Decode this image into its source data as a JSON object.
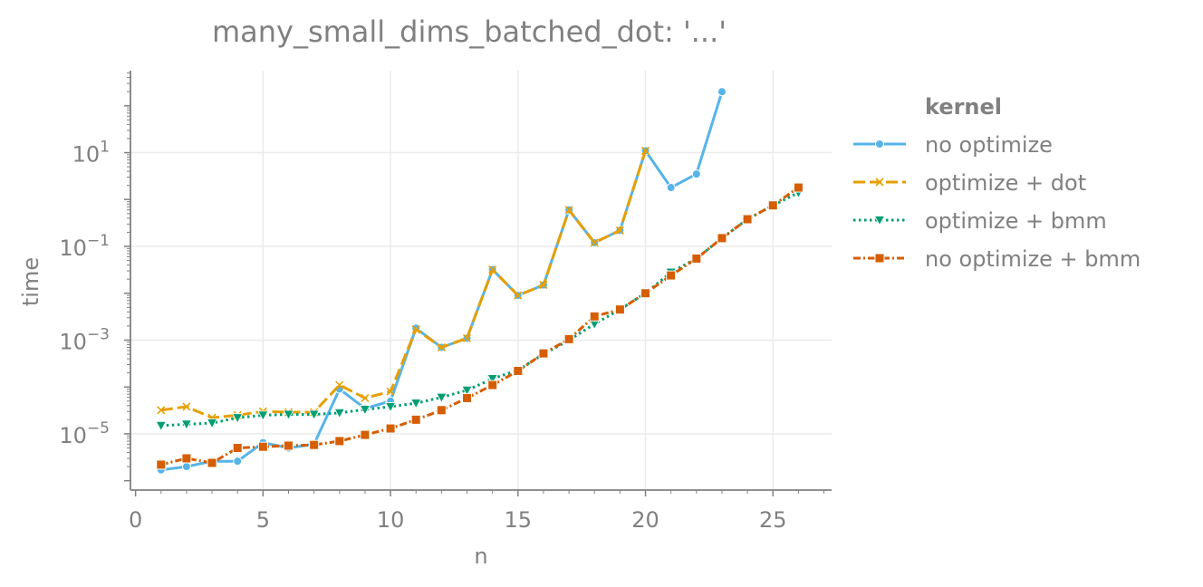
{
  "chart_data": {
    "type": "line",
    "title": "many_small_dims_batched_dot: '...'",
    "xlabel": "n",
    "ylabel": "time",
    "y_scale": "log",
    "grid": true,
    "xlim": [
      -0.2,
      27.3
    ],
    "ylim_exp": [
      -6.2,
      2.75
    ],
    "x_ticks": [
      0,
      5,
      10,
      15,
      20,
      25
    ],
    "y_ticks": [
      {
        "base": "10",
        "exp": "1",
        "value": 1
      },
      {
        "base": "10",
        "exp": "−1",
        "value": -1
      },
      {
        "base": "10",
        "exp": "−3",
        "value": -3
      },
      {
        "base": "10",
        "exp": "−5",
        "value": -5
      }
    ],
    "legend": {
      "title": "kernel",
      "position": "right"
    },
    "series": [
      {
        "name": "no optimize",
        "color": "#56b4e9",
        "dash": "",
        "marker": "circle",
        "x": [
          1,
          2,
          3,
          4,
          5,
          6,
          7,
          8,
          9,
          10,
          11,
          12,
          13,
          14,
          15,
          16,
          17,
          18,
          19,
          20,
          21,
          22,
          23
        ],
        "y": [
          1.7e-06,
          2e-06,
          2.6e-06,
          2.6e-06,
          6.5e-06,
          5e-06,
          6e-06,
          9e-05,
          3.5e-05,
          5e-05,
          0.0018,
          0.0007,
          0.0011,
          0.032,
          0.009,
          0.015,
          0.6,
          0.12,
          0.22,
          11.0,
          1.8,
          3.5,
          200
        ]
      },
      {
        "name": "optimize + dot",
        "color": "#e69f00",
        "dash": "13,5",
        "marker": "x",
        "x": [
          1,
          2,
          3,
          4,
          5,
          6,
          7,
          8,
          9,
          10,
          11,
          12,
          13,
          14,
          15,
          16,
          17,
          18,
          19,
          20
        ],
        "y": [
          3.2e-05,
          3.8e-05,
          2.2e-05,
          2.5e-05,
          3e-05,
          2.9e-05,
          2.9e-05,
          0.00011,
          5.8e-05,
          8e-05,
          0.0017,
          0.0007,
          0.0011,
          0.032,
          0.009,
          0.015,
          0.6,
          0.12,
          0.22,
          11.0
        ]
      },
      {
        "name": "optimize + bmm",
        "color": "#009e73",
        "dash": "2.5,3.5",
        "marker": "triangle-down",
        "x": [
          1,
          2,
          3,
          4,
          5,
          6,
          7,
          8,
          9,
          10,
          11,
          12,
          13,
          14,
          15,
          16,
          17,
          18,
          19,
          20,
          21,
          22,
          23,
          24,
          25,
          26
        ],
        "y": [
          1.5e-05,
          1.6e-05,
          1.7e-05,
          2.2e-05,
          2.5e-05,
          2.6e-05,
          2.6e-05,
          2.8e-05,
          3.3e-05,
          3.8e-05,
          4.5e-05,
          6e-05,
          8.5e-05,
          0.00015,
          0.00023,
          0.0005,
          0.001,
          0.0022,
          0.0045,
          0.01,
          0.028,
          0.055,
          0.15,
          0.38,
          0.75,
          1.4
        ]
      },
      {
        "name": "no optimize + bmm",
        "color": "#d55e00",
        "dash": "8,3,2,3",
        "marker": "square",
        "x": [
          1,
          2,
          3,
          4,
          5,
          6,
          7,
          8,
          9,
          10,
          11,
          12,
          13,
          14,
          15,
          16,
          17,
          18,
          19,
          20,
          21,
          22,
          23,
          24,
          25,
          26
        ],
        "y": [
          2.2e-06,
          3e-06,
          2.4e-06,
          5e-06,
          5.3e-06,
          5.6e-06,
          5.8e-06,
          7e-06,
          9.5e-06,
          1.3e-05,
          2e-05,
          3.2e-05,
          5.8e-05,
          0.00011,
          0.00022,
          0.00052,
          0.00105,
          0.0032,
          0.0045,
          0.01,
          0.024,
          0.055,
          0.15,
          0.38,
          0.75,
          1.8
        ]
      }
    ]
  }
}
